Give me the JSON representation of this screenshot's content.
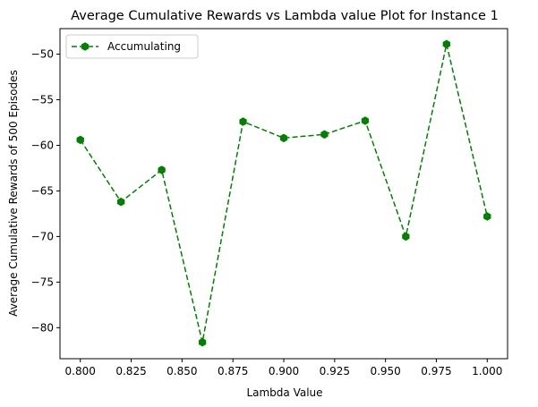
{
  "chart_data": {
    "type": "line",
    "title": "Average Cumulative Rewards vs Lambda value Plot for Instance 1",
    "xlabel": "Lambda Value",
    "ylabel": "Average Cumulative Rewards of 500 Episodes",
    "xlim": [
      0.79,
      1.01
    ],
    "ylim": [
      -83.4,
      -47.2
    ],
    "xticks": [
      0.8,
      0.825,
      0.85,
      0.875,
      0.9,
      0.925,
      0.95,
      0.975,
      1.0
    ],
    "xtick_labels": [
      "0.800",
      "0.825",
      "0.850",
      "0.875",
      "0.900",
      "0.925",
      "0.950",
      "0.975",
      "1.000"
    ],
    "yticks": [
      -80,
      -75,
      -70,
      -65,
      -60,
      -55,
      -50
    ],
    "ytick_labels": [
      "−80",
      "−75",
      "−70",
      "−65",
      "−60",
      "−55",
      "−50"
    ],
    "grid": false,
    "legend_position": "top-left",
    "series": [
      {
        "name": "Accumulating",
        "color": "#008000",
        "line_style": "dashed",
        "marker": "hexagon",
        "x": [
          0.8,
          0.82,
          0.84,
          0.86,
          0.88,
          0.9,
          0.92,
          0.94,
          0.96,
          0.98,
          1.0
        ],
        "y": [
          -59.4,
          -66.2,
          -62.7,
          -81.6,
          -57.4,
          -59.2,
          -58.8,
          -57.3,
          -70.0,
          -48.9,
          -67.8
        ]
      }
    ]
  }
}
